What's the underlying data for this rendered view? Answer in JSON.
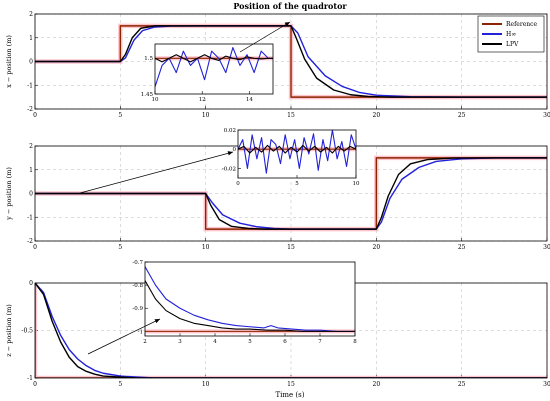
{
  "figure": {
    "title": "Position of the quadrotor",
    "xlabel": "Time (s)"
  },
  "legend": {
    "entries": [
      {
        "name": "Reference",
        "color": "#8B2500"
      },
      {
        "name": "H∞",
        "color": "#2222D8"
      },
      {
        "name": "LPV",
        "color": "#000000"
      }
    ],
    "placement": "top-right"
  },
  "colors": {
    "reference": "#8B2500",
    "hinf": "#2222D8",
    "lpv": "#000000",
    "ref_highlight": "#FFB6C1",
    "grid": "#bbbbbb"
  },
  "chart_data": [
    {
      "type": "line",
      "title": "Position of the quadrotor",
      "ylabel": "x − position (m)",
      "xlim": [
        0,
        30
      ],
      "ylim": [
        -2,
        2
      ],
      "xticks": [
        0,
        5,
        10,
        15,
        20,
        25,
        30
      ],
      "yticks": [
        -2,
        -1,
        0,
        1,
        2
      ],
      "grid": true,
      "series": [
        {
          "name": "Reference",
          "x": [
            0,
            5,
            5,
            15,
            15,
            30
          ],
          "y": [
            0,
            0,
            1.5,
            1.5,
            -1.5,
            -1.5
          ]
        },
        {
          "name": "H∞",
          "x": [
            0,
            5,
            5.3,
            5.8,
            6.3,
            7,
            8,
            10,
            12,
            15,
            15.4,
            16,
            17,
            18,
            19,
            20,
            22,
            25,
            30
          ],
          "y": [
            0,
            0,
            0.15,
            0.9,
            1.3,
            1.45,
            1.49,
            1.5,
            1.5,
            1.5,
            1.2,
            0.2,
            -0.6,
            -1.05,
            -1.3,
            -1.42,
            -1.48,
            -1.5,
            -1.5
          ]
        },
        {
          "name": "LPV",
          "x": [
            0,
            5,
            5.3,
            5.7,
            6.2,
            7,
            8,
            10,
            12,
            15,
            15.3,
            15.8,
            16.5,
            17.5,
            18.5,
            19.5,
            21,
            25,
            30
          ],
          "y": [
            0,
            0,
            0.3,
            1.0,
            1.4,
            1.5,
            1.5,
            1.5,
            1.5,
            1.5,
            1.0,
            0.1,
            -0.7,
            -1.2,
            -1.4,
            -1.47,
            -1.5,
            -1.5,
            -1.5
          ]
        }
      ],
      "inset": {
        "xlim": [
          10,
          15
        ],
        "ylim": [
          1.45,
          1.52
        ],
        "xticks": [
          10,
          12,
          14
        ],
        "yticks": [
          1.45,
          1.5
        ],
        "series": [
          {
            "name": "Reference",
            "x": [
              10,
              15
            ],
            "y": [
              1.5,
              1.5
            ]
          },
          {
            "name": "H∞",
            "x": [
              10,
              10.3,
              10.6,
              10.9,
              11.2,
              11.5,
              11.8,
              12.1,
              12.4,
              12.7,
              13.0,
              13.3,
              13.6,
              13.9,
              14.2,
              14.5,
              14.8,
              15
            ],
            "y": [
              1.46,
              1.49,
              1.5,
              1.48,
              1.51,
              1.49,
              1.5,
              1.47,
              1.51,
              1.5,
              1.48,
              1.515,
              1.49,
              1.505,
              1.48,
              1.51,
              1.5,
              1.5
            ]
          },
          {
            "name": "LPV",
            "x": [
              10,
              10.3,
              10.6,
              10.9,
              11.2,
              11.5,
              11.8,
              12.1,
              12.4,
              12.7,
              13.0,
              13.3,
              13.6,
              13.9,
              14.2,
              14.5,
              14.8,
              15
            ],
            "y": [
              1.5,
              1.495,
              1.5,
              1.505,
              1.5,
              1.495,
              1.5,
              1.505,
              1.5,
              1.497,
              1.503,
              1.5,
              1.498,
              1.502,
              1.5,
              1.499,
              1.5,
              1.5
            ]
          }
        ]
      }
    },
    {
      "type": "line",
      "ylabel": "y − position (m)",
      "xlim": [
        0,
        30
      ],
      "ylim": [
        -2,
        2
      ],
      "xticks": [
        0,
        5,
        10,
        15,
        20,
        25,
        30
      ],
      "yticks": [
        -2,
        -1,
        0,
        1,
        2
      ],
      "grid": true,
      "series": [
        {
          "name": "Reference",
          "x": [
            0,
            10,
            10,
            20,
            20,
            30
          ],
          "y": [
            0,
            0,
            -1.5,
            -1.5,
            1.5,
            1.5
          ]
        },
        {
          "name": "H∞",
          "x": [
            0,
            10,
            10.4,
            11,
            12,
            13,
            14,
            15,
            17,
            20,
            20.3,
            20.8,
            21.5,
            22.5,
            23.5,
            25,
            27,
            30
          ],
          "y": [
            0,
            0,
            -0.4,
            -0.9,
            -1.25,
            -1.4,
            -1.47,
            -1.5,
            -1.5,
            -1.5,
            -1.2,
            -0.2,
            0.6,
            1.1,
            1.35,
            1.46,
            1.5,
            1.5
          ]
        },
        {
          "name": "LPV",
          "x": [
            0,
            10,
            10.3,
            10.8,
            11.5,
            12.5,
            13.5,
            15,
            17,
            20,
            20.3,
            20.7,
            21.3,
            22,
            23,
            24.5,
            27,
            30
          ],
          "y": [
            0,
            0,
            -0.5,
            -1.1,
            -1.38,
            -1.47,
            -1.5,
            -1.5,
            -1.5,
            -1.5,
            -1.0,
            -0.1,
            0.8,
            1.25,
            1.43,
            1.49,
            1.5,
            1.5
          ]
        }
      ],
      "inset": {
        "xlim": [
          0,
          10
        ],
        "ylim": [
          -0.03,
          0.02
        ],
        "xticks": [
          0,
          5,
          10
        ],
        "yticks": [
          -0.02,
          0,
          0.02
        ],
        "series": [
          {
            "name": "Reference",
            "x": [
              0,
              10
            ],
            "y": [
              0,
              0
            ]
          },
          {
            "name": "H∞",
            "x": [
              0,
              0.4,
              0.8,
              1.2,
              1.6,
              2.0,
              2.4,
              2.8,
              3.2,
              3.6,
              4.0,
              4.4,
              4.8,
              5.2,
              5.6,
              6.0,
              6.4,
              6.8,
              7.2,
              7.6,
              8.0,
              8.4,
              8.8,
              9.2,
              9.6,
              10
            ],
            "y": [
              0,
              0.01,
              -0.02,
              0.015,
              -0.01,
              0.012,
              -0.025,
              0.01,
              0.005,
              -0.015,
              0.015,
              -0.01,
              0.01,
              -0.02,
              0.012,
              -0.005,
              0.016,
              -0.022,
              0.01,
              -0.012,
              0.02,
              -0.01,
              0.008,
              -0.018,
              0.015,
              0
            ]
          },
          {
            "name": "LPV",
            "x": [
              0,
              0.5,
              1.0,
              1.5,
              2.0,
              2.5,
              3.0,
              3.5,
              4.0,
              4.5,
              5.0,
              5.5,
              6.0,
              6.5,
              7.0,
              7.5,
              8.0,
              8.5,
              9.0,
              9.5,
              10
            ],
            "y": [
              0,
              0.003,
              -0.004,
              0.002,
              -0.003,
              0.004,
              -0.002,
              0.003,
              -0.004,
              0.002,
              -0.003,
              0.004,
              -0.002,
              0.003,
              -0.003,
              0.002,
              -0.004,
              0.003,
              -0.002,
              0.003,
              0
            ]
          }
        ]
      }
    },
    {
      "type": "line",
      "ylabel": "z − position (m)",
      "xlabel": "Time (s)",
      "xlim": [
        0,
        30
      ],
      "ylim": [
        -1,
        0
      ],
      "xticks": [
        0,
        5,
        10,
        15,
        20,
        25,
        30
      ],
      "yticks": [
        -1,
        -0.5,
        0
      ],
      "grid": true,
      "series": [
        {
          "name": "Reference",
          "x": [
            0,
            0,
            30
          ],
          "y": [
            0,
            -1,
            -1
          ]
        },
        {
          "name": "H∞",
          "x": [
            0,
            0.5,
            1,
            1.5,
            2,
            2.5,
            3,
            3.5,
            4,
            5,
            6,
            7,
            8,
            10,
            15,
            30
          ],
          "y": [
            0,
            -0.1,
            -0.35,
            -0.55,
            -0.7,
            -0.8,
            -0.87,
            -0.92,
            -0.95,
            -0.98,
            -0.99,
            -1,
            -1,
            -1,
            -1,
            -1
          ]
        },
        {
          "name": "LPV",
          "x": [
            0,
            0.5,
            1,
            1.5,
            2,
            2.5,
            3,
            3.5,
            4,
            5,
            6,
            7,
            8,
            10,
            15,
            30
          ],
          "y": [
            0,
            -0.12,
            -0.4,
            -0.62,
            -0.78,
            -0.88,
            -0.93,
            -0.96,
            -0.98,
            -0.99,
            -1,
            -1,
            -1,
            -1,
            -1,
            -1
          ]
        }
      ],
      "inset": {
        "xlim": [
          2,
          8
        ],
        "ylim": [
          -1.02,
          -0.7
        ],
        "xticks": [
          2,
          3,
          4,
          5,
          6,
          7,
          8
        ],
        "yticks": [
          -1,
          -0.9,
          -0.8,
          -0.7
        ],
        "series": [
          {
            "name": "Reference",
            "x": [
              2,
              8
            ],
            "y": [
              -1,
              -1
            ]
          },
          {
            "name": "H∞",
            "x": [
              2,
              2.3,
              2.6,
              3.0,
              3.4,
              3.8,
              4.2,
              4.6,
              5.0,
              5.4,
              5.6,
              5.8,
              6.2,
              6.6,
              7.0,
              7.5,
              8
            ],
            "y": [
              -0.72,
              -0.8,
              -0.86,
              -0.9,
              -0.93,
              -0.95,
              -0.965,
              -0.975,
              -0.98,
              -0.985,
              -0.975,
              -0.985,
              -0.99,
              -0.995,
              -0.995,
              -1.0,
              -1.0
            ]
          },
          {
            "name": "LPV",
            "x": [
              2,
              2.3,
              2.6,
              3.0,
              3.4,
              3.8,
              4.2,
              4.6,
              5.0,
              5.5,
              6.0,
              6.5,
              7.0,
              7.5,
              8
            ],
            "y": [
              -0.78,
              -0.86,
              -0.91,
              -0.945,
              -0.965,
              -0.975,
              -0.985,
              -0.99,
              -0.99,
              -0.995,
              -0.995,
              -1.0,
              -1.0,
              -1.0,
              -1.0
            ]
          }
        ]
      }
    }
  ]
}
